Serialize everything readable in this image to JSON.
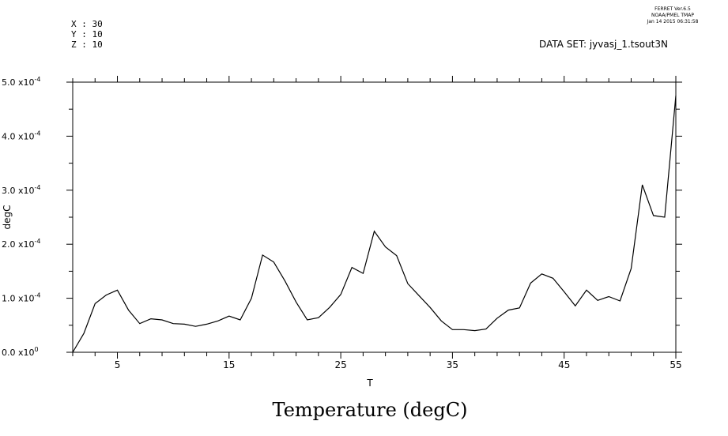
{
  "header": {
    "coords": [
      "X : 30",
      "Y : 10",
      "Z : 10"
    ],
    "ferret_lines": [
      "FERRET  Ver.6.5",
      "NOAA/PMEL TMAP",
      "Jan 14 2015 06:31:58"
    ],
    "dataset": "DATA SET: jyvasj_1.tsout3N"
  },
  "chart_data": {
    "type": "line",
    "title": "Temperature (degC)",
    "xlabel": "T",
    "ylabel": "degC",
    "xlim": [
      1,
      55
    ],
    "ylim": [
      0,
      0.0005
    ],
    "x_ticks": [
      5,
      15,
      25,
      35,
      45,
      55
    ],
    "y_ticks": [
      {
        "value": 0.0,
        "mantissa": "0.0 x10",
        "exp": "0"
      },
      {
        "value": 0.0001,
        "mantissa": "1.0 x10",
        "exp": "-4"
      },
      {
        "value": 0.0002,
        "mantissa": "2.0 x10",
        "exp": "-4"
      },
      {
        "value": 0.0003,
        "mantissa": "3.0 x10",
        "exp": "-4"
      },
      {
        "value": 0.0004,
        "mantissa": "4.0 x10",
        "exp": "-4"
      },
      {
        "value": 0.0005,
        "mantissa": "5.0 x10",
        "exp": "-4"
      }
    ],
    "series": [
      {
        "x": [
          1,
          2,
          3,
          4,
          5,
          6,
          7,
          8,
          9,
          10,
          11,
          12,
          13,
          14,
          15,
          16,
          17,
          18,
          19,
          20,
          21,
          22,
          23,
          24,
          25,
          26,
          27,
          28,
          29,
          30,
          31,
          32,
          33,
          34,
          35,
          36,
          37,
          38,
          39,
          40,
          41,
          42,
          43,
          44,
          45,
          46,
          47,
          48,
          49,
          50,
          51,
          52,
          53,
          54,
          55
        ],
        "values": [
          0.0,
          3.5e-05,
          9e-05,
          0.000106,
          0.000115,
          7.8e-05,
          5.3e-05,
          6.2e-05,
          6e-05,
          5.3e-05,
          5.2e-05,
          4.8e-05,
          5.2e-05,
          5.8e-05,
          6.7e-05,
          6e-05,
          0.0001,
          0.00018,
          0.000167,
          0.000132,
          9.3e-05,
          6e-05,
          6.4e-05,
          8.3e-05,
          0.000107,
          0.000157,
          0.000146,
          0.000224,
          0.000195,
          0.000179,
          0.000127,
          0.000105,
          8.3e-05,
          5.8e-05,
          4.2e-05,
          4.2e-05,
          4e-05,
          4.3e-05,
          6.3e-05,
          7.8e-05,
          8.2e-05,
          0.000128,
          0.000145,
          0.000137,
          0.000112,
          8.6e-05,
          0.000115,
          9.6e-05,
          0.000103,
          9.5e-05,
          0.000155,
          0.00031,
          0.000253,
          0.00025,
          0.000475
        ]
      }
    ]
  }
}
